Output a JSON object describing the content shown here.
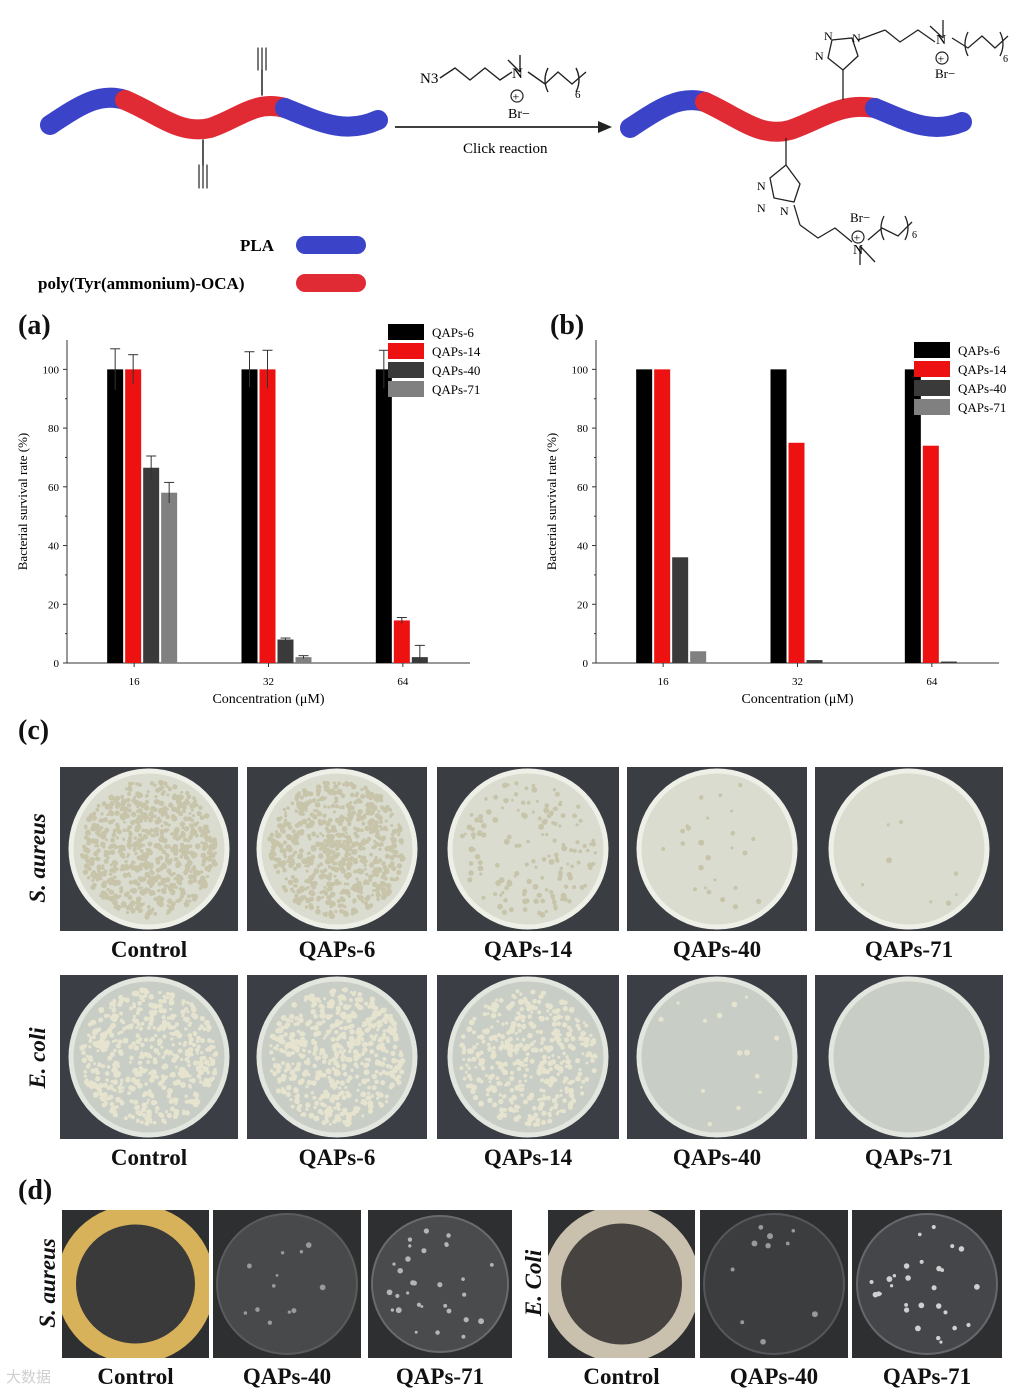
{
  "scheme": {
    "reagent_formula": "N3",
    "reagent_subscript": "6",
    "counter_ion": "Br−",
    "arrow_label": "Click reaction",
    "legend_pla": "PLA",
    "legend_poly": "poly(Tyr(ammonium)-OCA)",
    "colors": {
      "pla": "#3b43c9",
      "poly": "#e02b35"
    }
  },
  "panels": {
    "a": "(a)",
    "b": "(b)",
    "c": "(c)",
    "d": "(d)"
  },
  "chart_data": [
    {
      "type": "bar",
      "panel": "(a)",
      "categories": [
        "16",
        "32",
        "64"
      ],
      "xlabel": "Concentration (μM)",
      "ylabel": "Bacterial survival rate (%)",
      "ylim": [
        0,
        110
      ],
      "yticks": [
        "0",
        "20",
        "40",
        "60",
        "80",
        "100"
      ],
      "legend": "top-right",
      "series": [
        {
          "name": "QAPs-6",
          "color": "#000000",
          "values": [
            100,
            100,
            100
          ],
          "errors": [
            7,
            6,
            6.5
          ]
        },
        {
          "name": "QAPs-14",
          "color": "#ee1111",
          "values": [
            100,
            100,
            14.5
          ],
          "errors": [
            5,
            6.5,
            1
          ]
        },
        {
          "name": "QAPs-40",
          "color": "#3a3a3a",
          "values": [
            66.5,
            8,
            2
          ],
          "errors": [
            4,
            0.5,
            4
          ]
        },
        {
          "name": "QAPs-71",
          "color": "#808080",
          "values": [
            58,
            2,
            0
          ],
          "errors": [
            3.5,
            0.5,
            0
          ]
        }
      ]
    },
    {
      "type": "bar",
      "panel": "(b)",
      "categories": [
        "16",
        "32",
        "64"
      ],
      "xlabel": "Concentration (μM)",
      "ylabel": "Bacterial survival rate (%)",
      "ylim": [
        0,
        110
      ],
      "yticks": [
        "0",
        "20",
        "40",
        "60",
        "80",
        "100"
      ],
      "legend": "top-right",
      "series": [
        {
          "name": "QAPs-6",
          "color": "#000000",
          "values": [
            100,
            100,
            100
          ]
        },
        {
          "name": "QAPs-14",
          "color": "#ee1111",
          "values": [
            100,
            75,
            74
          ]
        },
        {
          "name": "QAPs-40",
          "color": "#3a3a3a",
          "values": [
            36,
            1,
            0.5
          ]
        },
        {
          "name": "QAPs-71",
          "color": "#808080",
          "values": [
            4,
            0,
            0
          ]
        }
      ]
    }
  ],
  "plates_c": {
    "row1_label": "S. aureus",
    "row2_label": "E. coli",
    "row1": [
      "Control",
      "QAPs-6",
      "QAPs-14",
      "QAPs-40",
      "QAPs-71"
    ],
    "row2": [
      "Control",
      "QAPs-6",
      "QAPs-14",
      "QAPs-40",
      "QAPs-71"
    ]
  },
  "plates_d": {
    "left_label": "S. aureus",
    "right_label": "E. Coli",
    "left": [
      "Control",
      "QAPs-40",
      "QAPs-71"
    ],
    "right": [
      "Control",
      "QAPs-40",
      "QAPs-71"
    ]
  },
  "watermark": "大数据"
}
